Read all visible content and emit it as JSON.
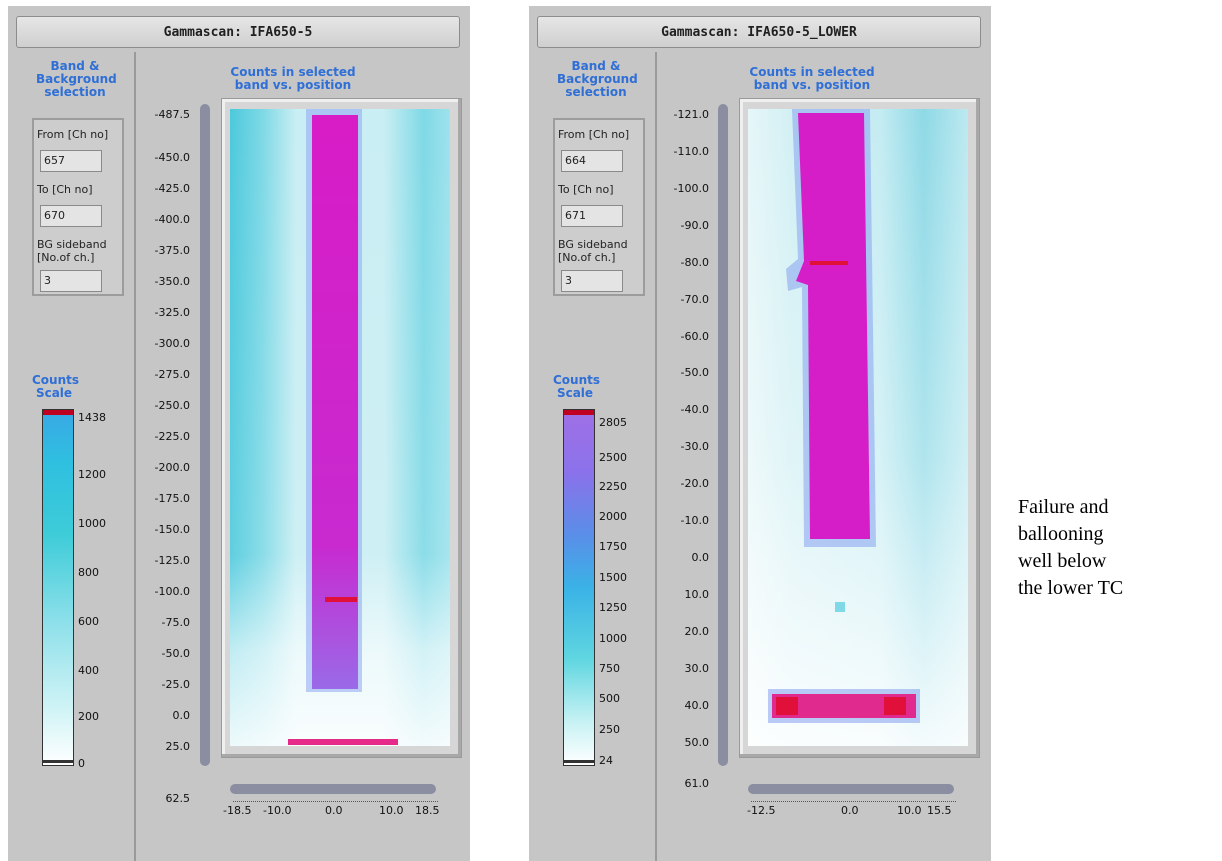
{
  "panels": [
    {
      "title": "Gammascan: IFA650-5",
      "band_heading": "Band & Background selection",
      "from_label": "From [Ch no]",
      "from_value": "657",
      "to_label": "To [Ch no]",
      "to_value": "670",
      "bg_label_1": "BG sideband",
      "bg_label_2": "[No.of ch.]",
      "bg_value": "3",
      "scale_heading": "Counts Scale",
      "scale_ticks": [
        "1438",
        "1200",
        "1000",
        "800",
        "600",
        "400",
        "200",
        "0"
      ],
      "plot_heading": "Counts in selected band vs. position",
      "y_ticks": [
        "-487.5",
        "-450.0",
        "-425.0",
        "-400.0",
        "-375.0",
        "-350.0",
        "-325.0",
        "-300.0",
        "-275.0",
        "-250.0",
        "-225.0",
        "-200.0",
        "-175.0",
        "-150.0",
        "-125.0",
        "-100.0",
        "-75.0",
        "-50.0",
        "-25.0",
        "0.0",
        "25.0",
        "62.5"
      ],
      "x_ticks": [
        "-18.5",
        "-10.0",
        "0.0",
        "10.0",
        "18.5"
      ]
    },
    {
      "title": "Gammascan: IFA650-5_LOWER",
      "band_heading": "Band & Background selection",
      "from_label": "From [Ch no]",
      "from_value": "664",
      "to_label": "To [Ch no]",
      "to_value": "671",
      "bg_label_1": "BG sideband",
      "bg_label_2": "[No.of ch.]",
      "bg_value": "3",
      "scale_heading": "Counts Scale",
      "scale_ticks": [
        "2805",
        "2500",
        "2250",
        "2000",
        "1750",
        "1500",
        "1250",
        "1000",
        "750",
        "500",
        "250",
        "24"
      ],
      "plot_heading": "Counts in selected band vs. position",
      "y_ticks": [
        "-121.0",
        "-110.0",
        "-100.0",
        "-90.0",
        "-80.0",
        "-70.0",
        "-60.0",
        "-50.0",
        "-40.0",
        "-30.0",
        "-20.0",
        "-10.0",
        "0.0",
        "10.0",
        "20.0",
        "30.0",
        "40.0",
        "50.0",
        "61.0"
      ],
      "x_ticks": [
        "-12.5",
        "0.0",
        "10.0",
        "15.5"
      ]
    }
  ],
  "annotation": [
    "Failure and",
    "ballooning",
    "well below",
    "the lower TC"
  ],
  "colors": {
    "panel_bg": "#c6c6c6",
    "heading_blue": "#2f6fd6",
    "rod_magenta": "#d61ec8",
    "hot_red": "#e0103a",
    "background_cyan": "#6fd6e6",
    "scale_top_cyan": "#3aa8e6",
    "scale_top_purple": "#9a6ae8"
  }
}
